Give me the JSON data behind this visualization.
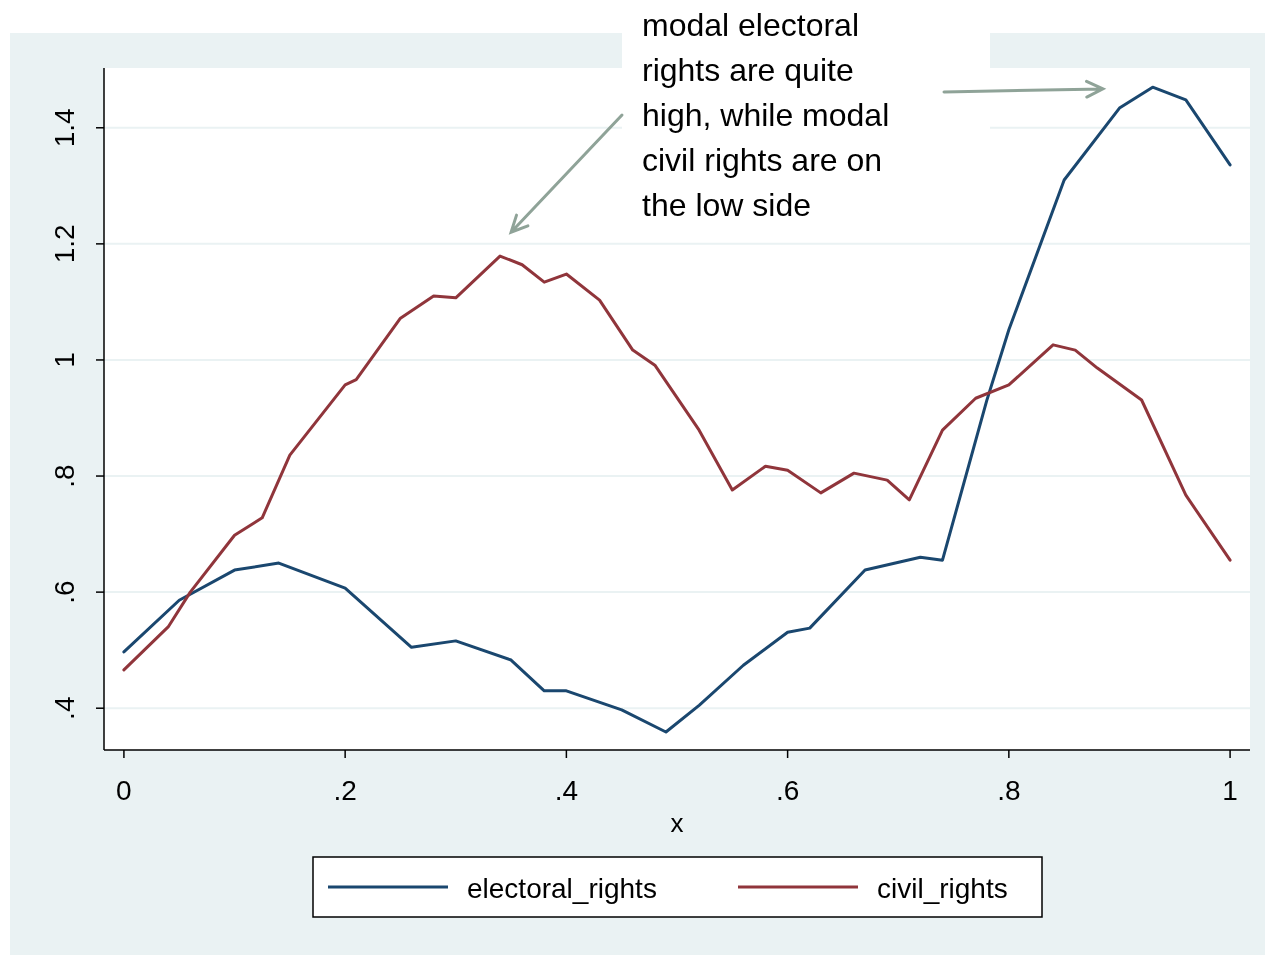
{
  "chart_data": {
    "type": "line",
    "xlabel": "x",
    "annotations": [
      "modal electoral rights are quite high, while modal civil rights are on the low side"
    ],
    "xlim": [
      -0.018,
      1.018
    ],
    "ylim": [
      0.328,
      1.503
    ],
    "xticks": [
      0,
      {
        "value": 0.2,
        "label": ".2"
      },
      {
        "value": 0.4,
        "label": ".4"
      },
      {
        "value": 0.6,
        "label": ".6"
      },
      {
        "value": 0.8,
        "label": ".8"
      },
      1
    ],
    "yticks": [
      {
        "value": 0.4,
        "label": ".4"
      },
      {
        "value": 0.6,
        "label": ".6"
      },
      {
        "value": 0.8,
        "label": ".8"
      },
      1,
      {
        "value": 1.2,
        "label": "1.2"
      },
      {
        "value": 1.4,
        "label": "1.4"
      }
    ],
    "grid": "y",
    "legend": "bottom",
    "line_style": "solid",
    "marker": "none",
    "series": [
      {
        "name": "electoral_rights",
        "color": "#1a476f",
        "x": [
          0,
          0.05,
          0.1,
          0.14,
          0.2,
          0.26,
          0.3,
          0.35,
          0.38,
          0.4,
          0.45,
          0.49,
          0.52,
          0.56,
          0.6,
          0.62,
          0.67,
          0.72,
          0.74,
          0.78,
          0.8,
          0.85,
          0.9,
          0.93,
          0.96,
          1
        ],
        "values": [
          0.497,
          0.586,
          0.638,
          0.65,
          0.607,
          0.505,
          0.516,
          0.483,
          0.43,
          0.43,
          0.397,
          0.359,
          0.405,
          0.474,
          0.531,
          0.538,
          0.638,
          0.66,
          0.655,
          0.93,
          1.052,
          1.31,
          1.434,
          1.47,
          1.448,
          1.336
        ]
      },
      {
        "name": "civil_rights",
        "color": "#90353b",
        "x": [
          0,
          0.04,
          0.06,
          0.1,
          0.125,
          0.15,
          0.2,
          0.21,
          0.25,
          0.28,
          0.3,
          0.34,
          0.36,
          0.38,
          0.4,
          0.43,
          0.46,
          0.48,
          0.52,
          0.55,
          0.58,
          0.6,
          0.63,
          0.66,
          0.69,
          0.71,
          0.74,
          0.77,
          0.8,
          0.84,
          0.86,
          0.88,
          0.92,
          0.96,
          1
        ],
        "values": [
          0.466,
          0.54,
          0.6,
          0.698,
          0.728,
          0.836,
          0.957,
          0.966,
          1.072,
          1.11,
          1.107,
          1.179,
          1.164,
          1.134,
          1.148,
          1.103,
          1.017,
          0.991,
          0.879,
          0.776,
          0.817,
          0.81,
          0.771,
          0.805,
          0.793,
          0.759,
          0.879,
          0.934,
          0.957,
          1.026,
          1.017,
          0.986,
          0.931,
          0.767,
          0.655
        ]
      }
    ]
  }
}
